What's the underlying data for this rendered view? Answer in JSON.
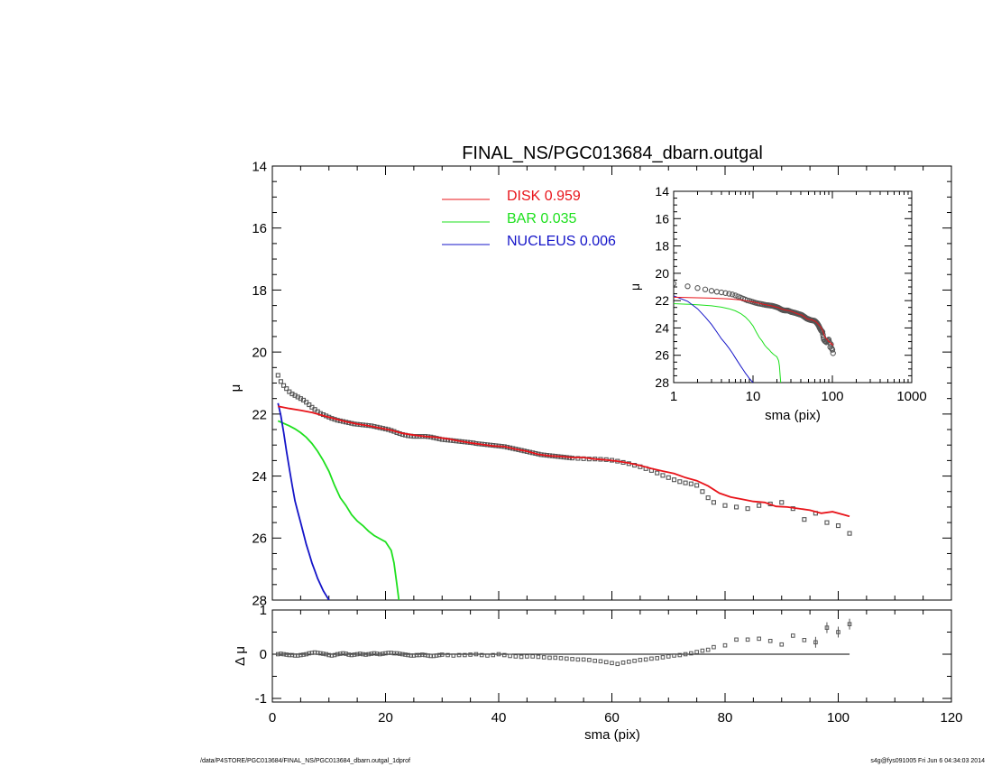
{
  "footer": {
    "path": "/data/P4STORE/PGC013684/FINAL_NS/PGC013684_dbarn.outgal_1dprof",
    "stamp": "s4g@fys091005  Fri Jun  6 04:34:03 2014"
  },
  "colors": {
    "disk": "#e8141a",
    "bar": "#1ee01e",
    "nucleus": "#1414c8",
    "data": "#555555",
    "axis": "#000000"
  },
  "chart_data": [
    {
      "id": "main",
      "type": "line",
      "title": "FINAL_NS/PGC013684_dbarn.outgal",
      "xlabel": "",
      "ylabel": "μ",
      "xlim": [
        0,
        120
      ],
      "ylim": [
        28,
        14
      ],
      "y_reversed": true,
      "xticks": [
        0,
        20,
        40,
        60,
        80,
        100,
        120
      ],
      "yticks": [
        14,
        16,
        18,
        20,
        22,
        24,
        26,
        28
      ],
      "legend": {
        "placement": "top-center",
        "entries": [
          {
            "name": "DISK",
            "value": "0.959",
            "color_key": "disk"
          },
          {
            "name": "BAR",
            "value": "0.035",
            "color_key": "bar"
          },
          {
            "name": "NUCLEUS",
            "value": "0.006",
            "color_key": "nucleus"
          }
        ]
      },
      "data_points": {
        "x": [
          1.0,
          1.5,
          2.0,
          2.5,
          3.0,
          3.5,
          4.0,
          4.5,
          5.0,
          5.5,
          6.0,
          6.5,
          7.0,
          7.5,
          8.0,
          8.5,
          9.0,
          9.5,
          10.0,
          10.5,
          11.0,
          11.5,
          12.0,
          12.5,
          13.0,
          13.5,
          14.0,
          14.5,
          15.0,
          15.5,
          16.0,
          16.5,
          17.0,
          17.5,
          18.0,
          18.5,
          19.0,
          19.5,
          20.0,
          20.5,
          21.0,
          21.5,
          22.0,
          22.5,
          23.0,
          23.5,
          24.0,
          24.5,
          25.0,
          25.5,
          26.0,
          26.5,
          27.0,
          27.5,
          28.0,
          28.5,
          29.0,
          29.5,
          30.0,
          30.5,
          31.0,
          31.5,
          32.0,
          32.5,
          33.0,
          33.5,
          34.0,
          34.5,
          35.0,
          35.5,
          36.0,
          36.5,
          37.0,
          37.5,
          38.0,
          38.5,
          39.0,
          39.5,
          40.0,
          40.5,
          41.0,
          41.5,
          42.0,
          42.5,
          43.0,
          43.5,
          44.0,
          44.5,
          45.0,
          45.5,
          46.0,
          46.5,
          47.0,
          47.5,
          48.0,
          48.5,
          49.0,
          49.5,
          50.0,
          50.5,
          51.0,
          51.5,
          52.0,
          52.5,
          53.0,
          54.0,
          55.0,
          56.0,
          57.0,
          58.0,
          59.0,
          60.0,
          61.0,
          62.0,
          63.0,
          64.0,
          65.0,
          66.0,
          67.0,
          68.0,
          69.0,
          70.0,
          71.0,
          72.0,
          73.0,
          74.0,
          75.0,
          76.0,
          77.0,
          78.0,
          80.0,
          82.0,
          84.0,
          86.0,
          88.0,
          90.0,
          92.0,
          94.0,
          96.0,
          98.0,
          100.0,
          102.0
        ],
        "y": [
          20.75,
          20.95,
          21.08,
          21.18,
          21.28,
          21.35,
          21.4,
          21.45,
          21.5,
          21.55,
          21.62,
          21.7,
          21.78,
          21.85,
          21.92,
          21.98,
          22.02,
          22.06,
          22.1,
          22.14,
          22.17,
          22.2,
          22.22,
          22.24,
          22.26,
          22.28,
          22.3,
          22.32,
          22.33,
          22.34,
          22.35,
          22.36,
          22.37,
          22.38,
          22.4,
          22.42,
          22.44,
          22.46,
          22.48,
          22.5,
          22.53,
          22.56,
          22.6,
          22.63,
          22.66,
          22.68,
          22.7,
          22.71,
          22.72,
          22.72,
          22.72,
          22.72,
          22.72,
          22.73,
          22.74,
          22.76,
          22.78,
          22.8,
          22.82,
          22.83,
          22.84,
          22.85,
          22.86,
          22.87,
          22.88,
          22.89,
          22.9,
          22.91,
          22.92,
          22.93,
          22.95,
          22.96,
          22.97,
          22.98,
          22.99,
          23.0,
          23.01,
          23.02,
          23.03,
          23.04,
          23.05,
          23.07,
          23.09,
          23.11,
          23.13,
          23.15,
          23.17,
          23.19,
          23.21,
          23.23,
          23.25,
          23.27,
          23.29,
          23.31,
          23.32,
          23.33,
          23.34,
          23.35,
          23.36,
          23.37,
          23.38,
          23.39,
          23.4,
          23.41,
          23.42,
          23.43,
          23.44,
          23.45,
          23.45,
          23.46,
          23.47,
          23.49,
          23.52,
          23.56,
          23.6,
          23.65,
          23.7,
          23.76,
          23.82,
          23.9,
          23.98,
          24.05,
          24.12,
          24.18,
          24.22,
          24.25,
          24.3,
          24.5,
          24.7,
          24.85,
          24.95,
          25.0,
          25.05,
          24.95,
          24.9,
          24.85,
          25.05,
          25.4,
          25.2,
          25.5,
          25.6,
          25.85
        ]
      },
      "models": {
        "disk": {
          "x": [
            1,
            3,
            5,
            7,
            9,
            11,
            13,
            15,
            17,
            19,
            21,
            23,
            25,
            27,
            29,
            31,
            33,
            35,
            37,
            39,
            41,
            43,
            45,
            47,
            49,
            51,
            53,
            55,
            57,
            59,
            61,
            63,
            65,
            67,
            69,
            71,
            73,
            75,
            77,
            79,
            81,
            83,
            85,
            87,
            89,
            91,
            93,
            95,
            97,
            99,
            101,
            102
          ],
          "y": [
            21.75,
            21.82,
            21.88,
            21.95,
            22.05,
            22.15,
            22.25,
            22.32,
            22.38,
            22.45,
            22.52,
            22.62,
            22.68,
            22.72,
            22.75,
            22.8,
            22.87,
            22.93,
            22.98,
            23.03,
            23.05,
            23.13,
            23.2,
            23.3,
            23.35,
            23.37,
            23.4,
            23.4,
            23.45,
            23.48,
            23.52,
            23.58,
            23.66,
            23.76,
            23.84,
            23.92,
            24.05,
            24.15,
            24.32,
            24.55,
            24.68,
            24.75,
            24.82,
            24.85,
            24.98,
            25.0,
            25.05,
            25.1,
            25.2,
            25.15,
            25.25,
            25.3
          ]
        },
        "bar": {
          "x": [
            1,
            2,
            3,
            4,
            5,
            6,
            7,
            8,
            9,
            10,
            11,
            12,
            13,
            14,
            15,
            16,
            17,
            18,
            19,
            20,
            21,
            21.5,
            22,
            22.5
          ],
          "y": [
            22.22,
            22.3,
            22.38,
            22.48,
            22.6,
            22.75,
            22.95,
            23.2,
            23.5,
            23.85,
            24.3,
            24.7,
            24.95,
            25.25,
            25.45,
            25.6,
            25.78,
            25.92,
            26.02,
            26.12,
            26.4,
            26.8,
            27.5,
            28.2
          ]
        },
        "nucleus": {
          "x": [
            1,
            1.5,
            2,
            2.5,
            3,
            3.5,
            4,
            4.5,
            5,
            5.5,
            6,
            6.5,
            7,
            7.5,
            8,
            8.5,
            9,
            9.5,
            10,
            10.5,
            11,
            11.3
          ],
          "y": [
            21.65,
            22.05,
            22.6,
            23.2,
            23.75,
            24.3,
            24.8,
            25.15,
            25.5,
            25.85,
            26.2,
            26.5,
            26.8,
            27.05,
            27.3,
            27.5,
            27.7,
            27.85,
            28.0,
            28.15,
            28.3,
            28.4
          ]
        }
      }
    },
    {
      "id": "inset",
      "type": "line",
      "xlabel": "sma (pix)",
      "ylabel": "μ",
      "xscale": "log",
      "xlim": [
        1,
        1000
      ],
      "ylim": [
        28,
        14
      ],
      "y_reversed": true,
      "xticks": [
        1,
        10,
        100,
        1000
      ],
      "xtick_labels": [
        "1",
        "10",
        "100",
        "1000"
      ],
      "yticks": [
        14,
        16,
        18,
        20,
        22,
        24,
        26,
        28
      ]
    },
    {
      "id": "residual",
      "type": "scatter",
      "xlabel": "sma (pix)",
      "ylabel": "Δ μ",
      "xlim": [
        0,
        120
      ],
      "ylim": [
        -1,
        1
      ],
      "xticks": [
        0,
        20,
        40,
        60,
        80,
        100,
        120
      ],
      "yticks": [
        -1,
        0,
        1
      ],
      "zero_line_to": 102,
      "points": {
        "x": [
          1,
          1.5,
          2,
          2.5,
          3,
          3.5,
          4,
          4.5,
          5,
          5.5,
          6,
          6.5,
          7,
          7.5,
          8,
          8.5,
          9,
          9.5,
          10,
          10.5,
          11,
          11.5,
          12,
          12.5,
          13,
          13.5,
          14,
          14.5,
          15,
          15.5,
          16,
          16.5,
          17,
          17.5,
          18,
          18.5,
          19,
          19.5,
          20,
          20.5,
          21,
          21.5,
          22,
          22.5,
          23,
          23.5,
          24,
          24.5,
          25,
          25.5,
          26,
          26.5,
          27,
          27.5,
          28,
          28.5,
          29,
          29.5,
          30,
          31,
          32,
          33,
          34,
          35,
          36,
          37,
          38,
          39,
          40,
          41,
          42,
          43,
          44,
          45,
          46,
          47,
          48,
          49,
          50,
          51,
          52,
          53,
          54,
          55,
          56,
          57,
          58,
          59,
          60,
          61,
          62,
          63,
          64,
          65,
          66,
          67,
          68,
          69,
          70,
          71,
          72,
          73,
          74,
          75,
          76,
          77,
          78,
          80,
          82,
          84,
          86,
          88,
          90,
          92,
          94,
          96,
          98,
          100,
          102
        ],
        "y": [
          0.0,
          0.01,
          0.0,
          -0.01,
          -0.02,
          -0.02,
          -0.03,
          -0.03,
          -0.02,
          -0.01,
          0.0,
          0.02,
          0.03,
          0.04,
          0.03,
          0.02,
          0.01,
          0.0,
          -0.02,
          -0.03,
          -0.02,
          0.0,
          0.01,
          0.02,
          0.01,
          -0.01,
          -0.02,
          -0.01,
          0.0,
          0.01,
          0.0,
          -0.01,
          0.0,
          0.01,
          0.02,
          0.01,
          0.0,
          0.01,
          0.02,
          0.03,
          0.03,
          0.02,
          0.02,
          0.01,
          0.0,
          -0.01,
          -0.02,
          -0.03,
          -0.03,
          -0.02,
          -0.02,
          -0.01,
          -0.02,
          -0.03,
          -0.04,
          -0.04,
          -0.03,
          -0.02,
          -0.01,
          -0.02,
          -0.03,
          -0.02,
          -0.02,
          -0.01,
          0.0,
          -0.02,
          -0.03,
          -0.02,
          0.0,
          -0.02,
          -0.04,
          -0.05,
          -0.06,
          -0.05,
          -0.05,
          -0.06,
          -0.07,
          -0.08,
          -0.08,
          -0.09,
          -0.1,
          -0.11,
          -0.12,
          -0.12,
          -0.13,
          -0.15,
          -0.16,
          -0.18,
          -0.2,
          -0.22,
          -0.19,
          -0.17,
          -0.15,
          -0.13,
          -0.12,
          -0.1,
          -0.09,
          -0.07,
          -0.05,
          -0.03,
          -0.02,
          0.0,
          0.02,
          0.05,
          0.08,
          0.1,
          0.16,
          0.2,
          0.33,
          0.33,
          0.35,
          0.3,
          0.22,
          0.42,
          0.32,
          0.27,
          0.6,
          0.5,
          0.68
        ]
      }
    }
  ]
}
